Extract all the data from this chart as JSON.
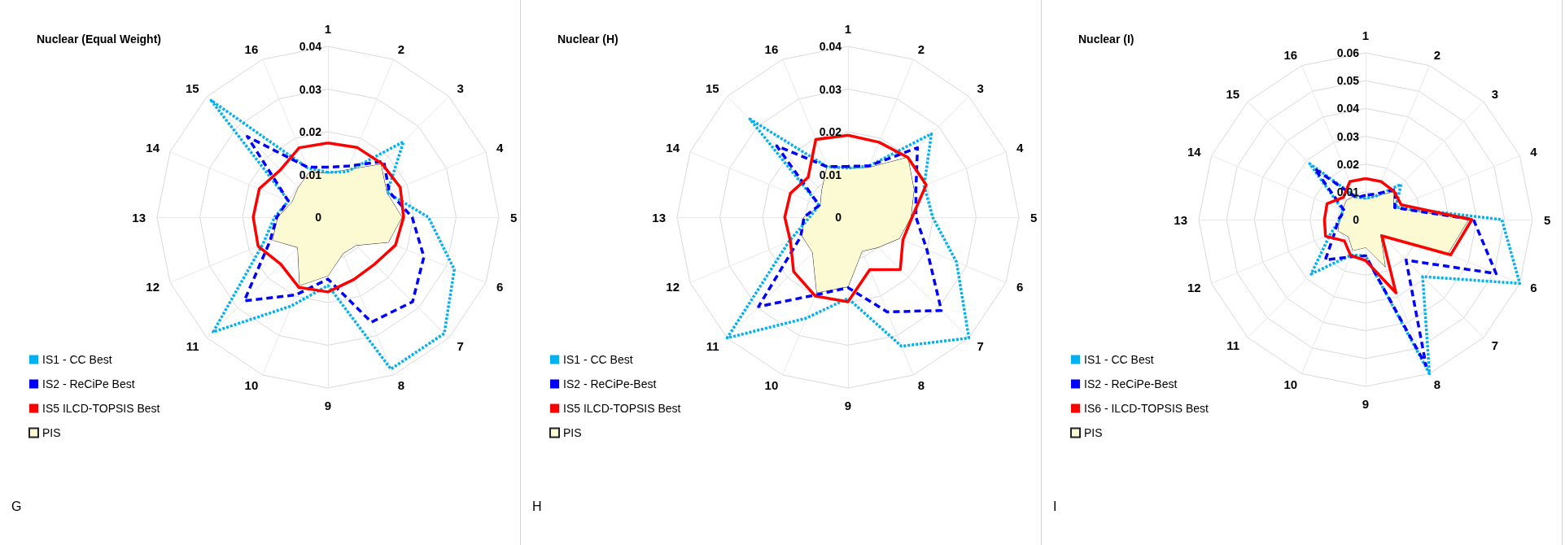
{
  "chart_data": [
    {
      "type": "radar",
      "title": "Nuclear (Equal Weight)",
      "categories": [
        "1",
        "2",
        "3",
        "4",
        "5",
        "6",
        "7",
        "8",
        "9",
        "10",
        "11",
        "12",
        "13",
        "14",
        "15",
        "16"
      ],
      "ylim": [
        0,
        0.04
      ],
      "yticks": [
        0,
        0.01,
        0.02,
        0.03,
        0.04
      ],
      "grid": true,
      "legend": "bottom left",
      "marker": "none",
      "annotations": [
        "G"
      ],
      "series": [
        {
          "name": "IS1 - CC Best",
          "color": "#00b0f0",
          "line_style": "dotted",
          "values": [
            0.0105,
            0.0115,
            0.025,
            0.015,
            0.0235,
            0.032,
            0.0385,
            0.0385,
            0.016,
            0.0225,
            0.038,
            0.0165,
            0.0125,
            0.01,
            0.0387,
            0.0125
          ]
        },
        {
          "name": "IS2 - ReCiPe Best",
          "color": "#0000ff",
          "line_style": "dashed",
          "values": [
            0.0117,
            0.013,
            0.0185,
            0.0155,
            0.0197,
            0.0243,
            0.028,
            0.0266,
            0.0145,
            0.0197,
            0.0277,
            0.0147,
            0.012,
            0.0101,
            0.0267,
            0.0127
          ]
        },
        {
          "name": "IS5 ILCD-TOPSIS Best",
          "color": "#ff0000",
          "line_style": "solid",
          "values": [
            0.0174,
            0.0177,
            0.0178,
            0.0183,
            0.0177,
            0.0171,
            0.0155,
            0.0158,
            0.0175,
            0.0178,
            0.0156,
            0.0177,
            0.0175,
            0.0174,
            0.0157,
            0.0176
          ]
        },
        {
          "name": "PIS",
          "type": "area",
          "color": "#fcfad2",
          "values": [
            0.0103,
            0.012,
            0.0175,
            0.0149,
            0.0173,
            0.0153,
            0.0093,
            0.0092,
            0.0137,
            0.0173,
            0.01,
            0.014,
            0.0117,
            0.0091,
            0.0098,
            0.0114
          ]
        }
      ]
    },
    {
      "type": "radar",
      "title": "Nuclear (H)",
      "categories": [
        "1",
        "2",
        "3",
        "4",
        "5",
        "6",
        "7",
        "8",
        "9",
        "10",
        "11",
        "12",
        "13",
        "14",
        "15",
        "16"
      ],
      "ylim": [
        0,
        0.04
      ],
      "yticks": [
        0,
        0.01,
        0.02,
        0.03,
        0.04
      ],
      "grid": true,
      "legend": "bottom left",
      "marker": "none",
      "annotations": [
        "H"
      ],
      "series": [
        {
          "name": "IS1 - CC Best",
          "color": "#00b0f0",
          "line_style": "dotted",
          "values": [
            0.0115,
            0.013,
            0.0276,
            0.0193,
            0.0198,
            0.0275,
            0.04,
            0.0327,
            0.019,
            0.0256,
            0.04,
            0.015,
            0.009,
            0.0073,
            0.0325,
            0.0128
          ]
        },
        {
          "name": "IS2 - ReCiPe-Best",
          "color": "#0000ff",
          "line_style": "dashed",
          "values": [
            0.0119,
            0.013,
            0.023,
            0.0172,
            0.0159,
            0.02,
            0.0309,
            0.024,
            0.0165,
            0.0197,
            0.0296,
            0.012,
            0.0103,
            0.0073,
            0.0236,
            0.0128
          ]
        },
        {
          "name": "IS5 ILCD-TOPSIS Best",
          "color": "#ff0000",
          "line_style": "solid",
          "values": [
            0.0192,
            0.019,
            0.0198,
            0.0198,
            0.015,
            0.0139,
            0.0173,
            0.0133,
            0.0198,
            0.02,
            0.018,
            0.0146,
            0.0148,
            0.0146,
            0.0132,
            0.0197
          ]
        },
        {
          "name": "PIS",
          "type": "area",
          "color": "#fcfad2",
          "values": [
            0.0115,
            0.0125,
            0.0198,
            0.0167,
            0.0147,
            0.013,
            0.01,
            0.0086,
            0.0163,
            0.0191,
            0.0117,
            0.0116,
            0.0103,
            0.007,
            0.0087,
            0.0128
          ]
        }
      ]
    },
    {
      "type": "radar",
      "title": "Nuclear (I)",
      "categories": [
        "1",
        "2",
        "3",
        "4",
        "5",
        "6",
        "7",
        "8",
        "9",
        "10",
        "11",
        "12",
        "13",
        "14",
        "15",
        "16"
      ],
      "ylim": [
        0,
        0.06
      ],
      "yticks": [
        0,
        0.01,
        0.02,
        0.03,
        0.04,
        0.05,
        0.06
      ],
      "grid": true,
      "legend": "bottom left",
      "marker": "none",
      "annotations": [
        "I"
      ],
      "series": [
        {
          "name": "IS1 - CC Best",
          "color": "#00b0f0",
          "line_style": "dotted",
          "values": [
            0.0077,
            0.009,
            0.018,
            0.0118,
            0.049,
            0.06,
            0.029,
            0.06,
            0.013,
            0.0138,
            0.0277,
            0.0138,
            0.0093,
            0.0088,
            0.0285,
            0.0088
          ]
        },
        {
          "name": "IS2 - ReCiPe-Best",
          "color": "#0000ff",
          "line_style": "dashed",
          "values": [
            0.0088,
            0.01,
            0.0154,
            0.0113,
            0.0388,
            0.0508,
            0.0206,
            0.0568,
            0.013,
            0.0145,
            0.0205,
            0.012,
            0.0098,
            0.0082,
            0.026,
            0.0085
          ]
        },
        {
          "name": "IS6 - ILCD-TOPSIS Best",
          "color": "#ff0000",
          "line_style": "solid",
          "values": [
            0.0148,
            0.0148,
            0.0144,
            0.0139,
            0.0382,
            0.0331,
            0.0083,
            0.0285,
            0.0147,
            0.014,
            0.0108,
            0.0156,
            0.0148,
            0.015,
            0.0113,
            0.0148
          ]
        },
        {
          "name": "PIS",
          "type": "area",
          "color": "#fcfad2",
          "values": [
            0.0073,
            0.009,
            0.014,
            0.011,
            0.037,
            0.032,
            0.0075,
            0.0184,
            0.01,
            0.012,
            0.0087,
            0.0107,
            0.0093,
            0.009,
            0.0097,
            0.0093
          ]
        }
      ]
    }
  ]
}
